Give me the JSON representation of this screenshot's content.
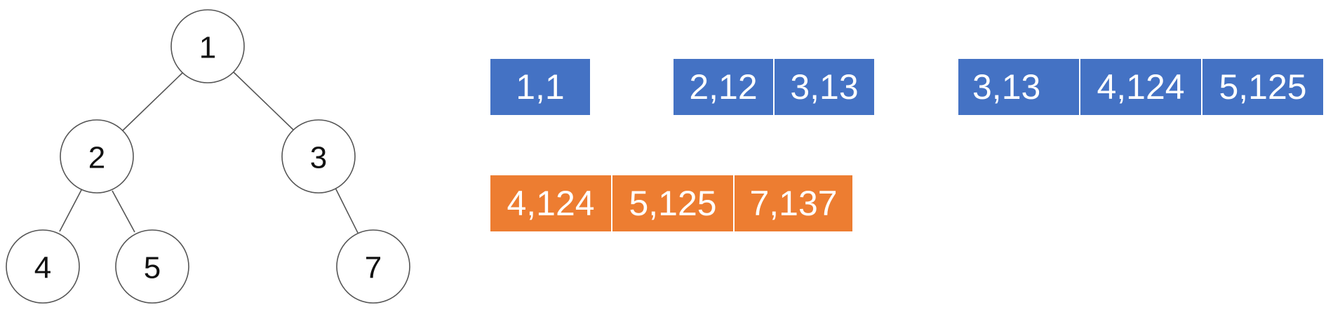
{
  "colors": {
    "queue_blue": "#4472c4",
    "queue_orange": "#ed7d31",
    "node_stroke": "#555555"
  },
  "tree": {
    "nodes": [
      {
        "id": "n1",
        "label": "1"
      },
      {
        "id": "n2",
        "label": "2"
      },
      {
        "id": "n3",
        "label": "3"
      },
      {
        "id": "n4",
        "label": "4"
      },
      {
        "id": "n5",
        "label": "5"
      },
      {
        "id": "n7",
        "label": "7"
      }
    ],
    "edges": [
      [
        "n1",
        "n2"
      ],
      [
        "n1",
        "n3"
      ],
      [
        "n2",
        "n4"
      ],
      [
        "n2",
        "n5"
      ],
      [
        "n3",
        "n7"
      ]
    ]
  },
  "queues": [
    {
      "color": "blue",
      "cells": [
        "1,1"
      ]
    },
    {
      "color": "blue",
      "cells": [
        "2,12",
        "3,13"
      ]
    },
    {
      "color": "blue",
      "cells": [
        "3,13",
        "4,124",
        "5,125"
      ]
    },
    {
      "color": "orange",
      "cells": [
        "4,124",
        "5,125",
        "7,137"
      ]
    }
  ]
}
